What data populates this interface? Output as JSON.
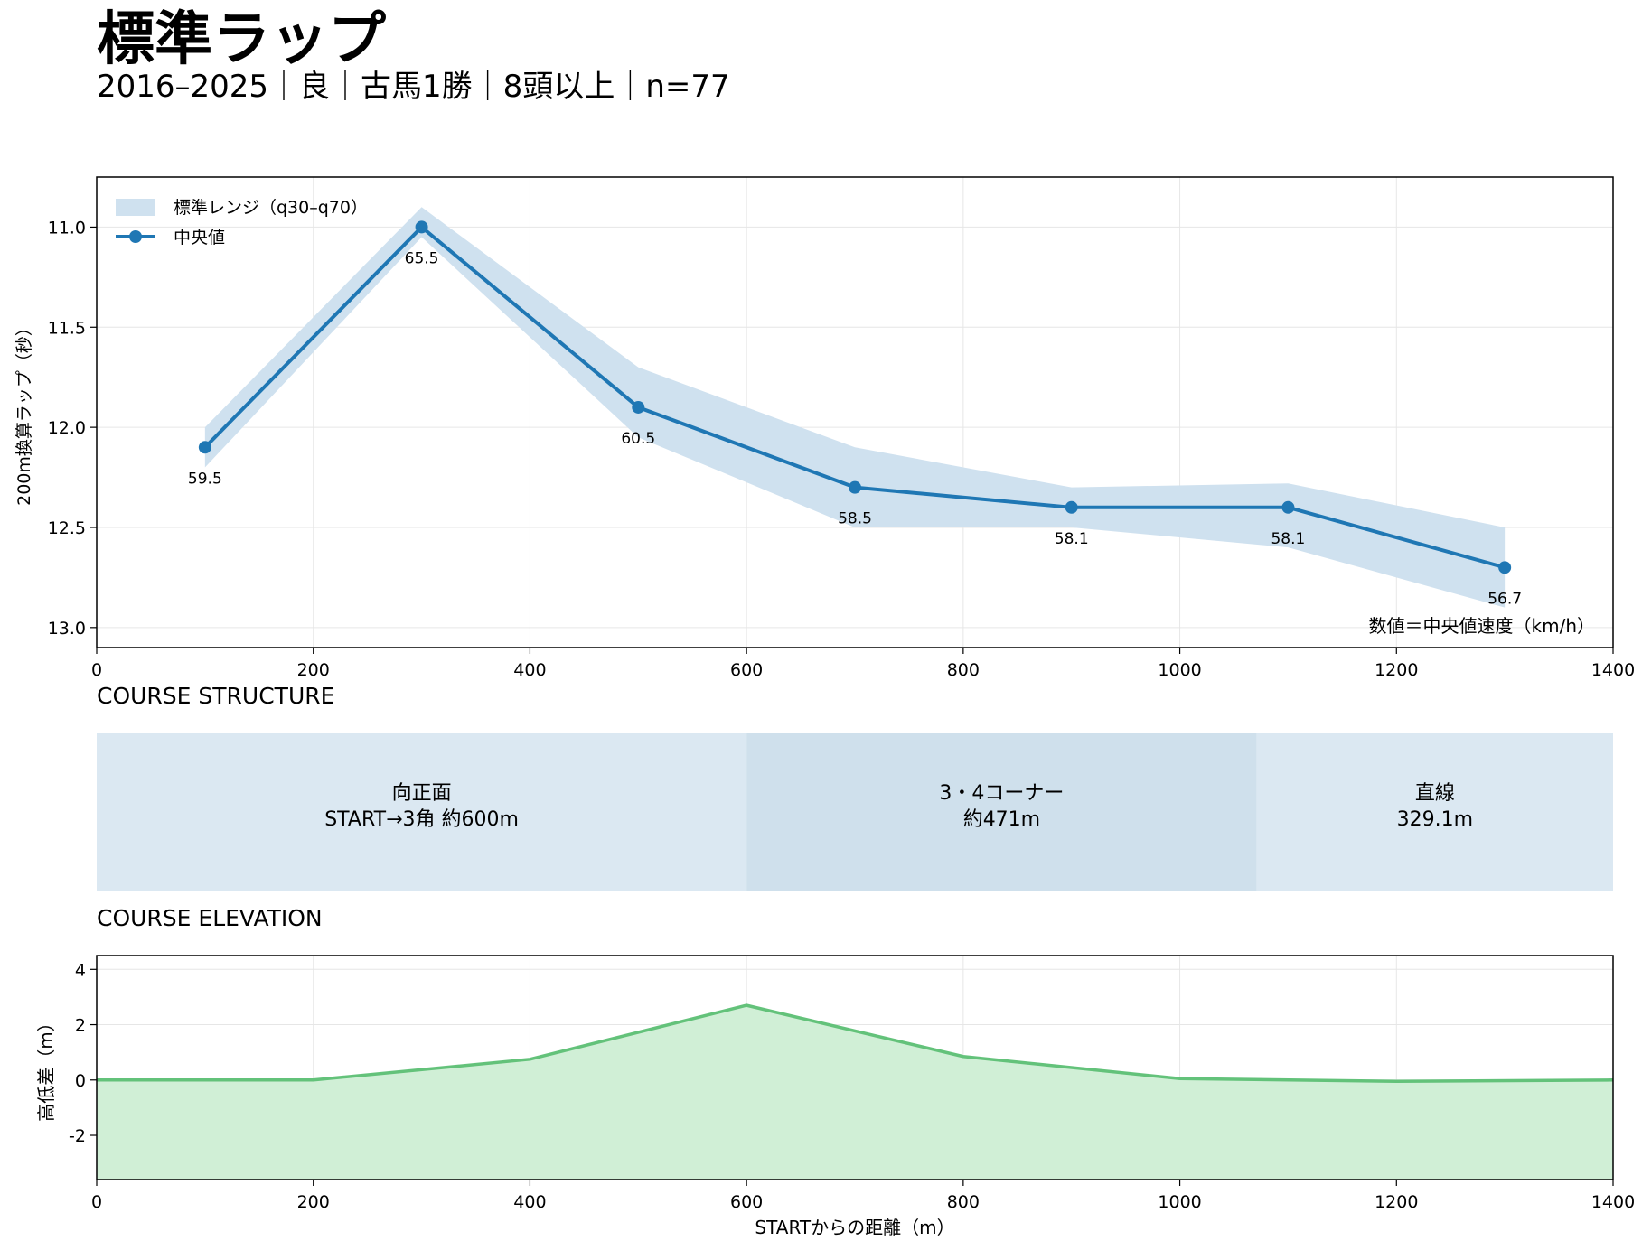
{
  "header": {
    "title": "標準ラップ",
    "subtitle": "2016–2025｜良｜古馬1勝｜8頭以上｜n=77"
  },
  "colors": {
    "median_line": "#1f77b4",
    "band_fill": "#cfe1ef",
    "elevation_line": "#63c27a",
    "elevation_fill": "#d0efd6",
    "segment_a": "#dbe8f2",
    "segment_b": "#cfe0ec",
    "grid": "#e6e6e6"
  },
  "chart_data": [
    {
      "type": "line",
      "ylabel": "200m換算ラップ（秒）",
      "xlim": [
        0,
        1400
      ],
      "ylim": [
        13.1,
        10.75
      ],
      "y_inverted": true,
      "x_ticks": [
        0,
        200,
        400,
        600,
        800,
        1000,
        1200,
        1400
      ],
      "y_ticks": [
        11.0,
        11.5,
        12.0,
        12.5,
        13.0
      ],
      "grid": true,
      "legend": {
        "placement": "top-left",
        "band_label": "標準レンジ（q30–q70）",
        "line_label": "中央値"
      },
      "annotation": "数値＝中央値速度（km/h）",
      "x": [
        100,
        300,
        500,
        700,
        900,
        1100,
        1300
      ],
      "series": [
        {
          "name": "中央値",
          "values": [
            12.1,
            11.0,
            11.9,
            12.3,
            12.4,
            12.4,
            12.7
          ]
        }
      ],
      "band": {
        "name": "標準レンジ（q30–q70）",
        "low": [
          12.0,
          10.9,
          11.7,
          12.1,
          12.3,
          12.28,
          12.5
        ],
        "high": [
          12.2,
          11.05,
          12.05,
          12.5,
          12.5,
          12.6,
          12.9
        ]
      },
      "point_labels": [
        "59.5",
        "65.5",
        "60.5",
        "58.5",
        "58.1",
        "58.1",
        "56.7"
      ]
    },
    {
      "type": "area",
      "title": "COURSE ELEVATION",
      "xlabel": "STARTからの距離（m）",
      "ylabel": "高低差（m）",
      "xlim": [
        0,
        1400
      ],
      "ylim": [
        -3.6,
        4.5
      ],
      "x_ticks": [
        0,
        200,
        400,
        600,
        800,
        1000,
        1200,
        1400
      ],
      "y_ticks": [
        4,
        2,
        0,
        -2
      ],
      "y_tick_labels": [
        "4",
        "2",
        "0",
        "-2"
      ],
      "grid": true,
      "x": [
        0,
        200,
        400,
        600,
        800,
        1000,
        1200,
        1400
      ],
      "series": [
        {
          "values": [
            0.0,
            0.0,
            0.75,
            2.7,
            0.85,
            0.05,
            -0.05,
            0.0
          ]
        }
      ]
    }
  ],
  "course_structure": {
    "title": "COURSE STRUCTURE",
    "segments": [
      {
        "start": 0,
        "end": 600,
        "label1": "向正面",
        "label2": "START→3角 約600m"
      },
      {
        "start": 600,
        "end": 1071,
        "label1": "3・4コーナー",
        "label2": "約471m"
      },
      {
        "start": 1071,
        "end": 1400,
        "label1": "直線",
        "label2": "329.1m"
      }
    ]
  }
}
